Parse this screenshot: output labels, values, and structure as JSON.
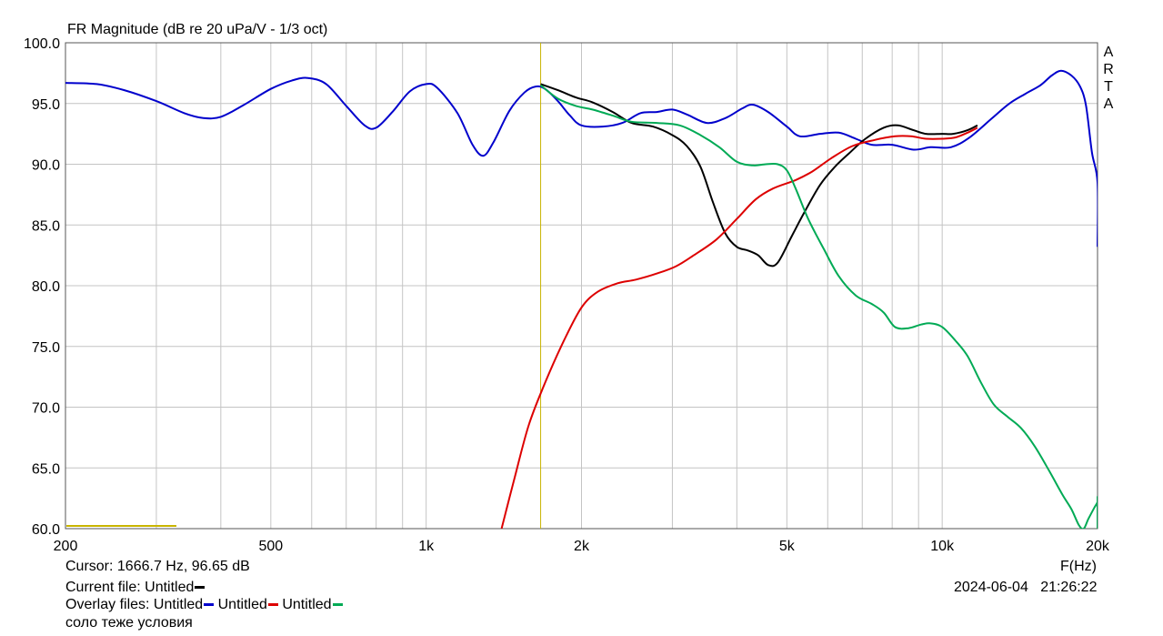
{
  "chart_data": {
    "type": "line",
    "title": "FR Magnitude (dB re 20 uPa/V - 1/3 oct)",
    "xlabel": "F(Hz)",
    "ylabel": "",
    "x_scale": "log",
    "xlim": [
      200,
      20000
    ],
    "ylim": [
      60,
      100
    ],
    "grid": true,
    "x_ticks": [
      {
        "value": 200,
        "label": "200"
      },
      {
        "value": 500,
        "label": "500"
      },
      {
        "value": 1000,
        "label": "1k"
      },
      {
        "value": 2000,
        "label": "2k"
      },
      {
        "value": 5000,
        "label": "5k"
      },
      {
        "value": 10000,
        "label": "10k"
      },
      {
        "value": 20000,
        "label": "20k"
      }
    ],
    "y_ticks": [
      {
        "value": 100,
        "label": "100.0"
      },
      {
        "value": 95,
        "label": "95.0"
      },
      {
        "value": 90,
        "label": "90.0"
      },
      {
        "value": 85,
        "label": "85.0"
      },
      {
        "value": 80,
        "label": "80.0"
      },
      {
        "value": 75,
        "label": "75.0"
      },
      {
        "value": 70,
        "label": "70.0"
      },
      {
        "value": 65,
        "label": "65.0"
      },
      {
        "value": 60,
        "label": "60.0"
      }
    ],
    "cursor": {
      "x": 1666.7,
      "color": "#c8b400"
    },
    "series": [
      {
        "color": "#0000cc",
        "points": [
          [
            200,
            96.7
          ],
          [
            230,
            96.6
          ],
          [
            260,
            96.1
          ],
          [
            300,
            95.2
          ],
          [
            340,
            94.2
          ],
          [
            370,
            93.8
          ],
          [
            400,
            93.9
          ],
          [
            440,
            94.8
          ],
          [
            500,
            96.2
          ],
          [
            550,
            96.9
          ],
          [
            590,
            97.1
          ],
          [
            640,
            96.6
          ],
          [
            700,
            94.8
          ],
          [
            760,
            93.2
          ],
          [
            800,
            93.0
          ],
          [
            860,
            94.3
          ],
          [
            930,
            96.0
          ],
          [
            1000,
            96.6
          ],
          [
            1050,
            96.3
          ],
          [
            1150,
            94.2
          ],
          [
            1230,
            91.6
          ],
          [
            1290,
            90.7
          ],
          [
            1350,
            91.8
          ],
          [
            1450,
            94.4
          ],
          [
            1550,
            95.9
          ],
          [
            1630,
            96.4
          ],
          [
            1700,
            96.2
          ],
          [
            1800,
            95.2
          ],
          [
            1900,
            94.0
          ],
          [
            2000,
            93.2
          ],
          [
            2200,
            93.1
          ],
          [
            2400,
            93.4
          ],
          [
            2600,
            94.2
          ],
          [
            2800,
            94.3
          ],
          [
            3000,
            94.5
          ],
          [
            3200,
            94.1
          ],
          [
            3500,
            93.4
          ],
          [
            3800,
            93.8
          ],
          [
            4100,
            94.6
          ],
          [
            4300,
            94.9
          ],
          [
            4600,
            94.3
          ],
          [
            5000,
            93.1
          ],
          [
            5300,
            92.3
          ],
          [
            5800,
            92.5
          ],
          [
            6300,
            92.6
          ],
          [
            6800,
            92.1
          ],
          [
            7300,
            91.6
          ],
          [
            8000,
            91.6
          ],
          [
            8800,
            91.2
          ],
          [
            9500,
            91.4
          ],
          [
            10400,
            91.4
          ],
          [
            11300,
            92.2
          ],
          [
            12500,
            93.8
          ],
          [
            13500,
            95.0
          ],
          [
            14500,
            95.8
          ],
          [
            15500,
            96.5
          ],
          [
            16300,
            97.3
          ],
          [
            17000,
            97.7
          ],
          [
            17800,
            97.3
          ],
          [
            18500,
            96.4
          ],
          [
            19000,
            94.8
          ],
          [
            19500,
            91.0
          ],
          [
            20000,
            88.5
          ],
          [
            20000,
            83.2
          ]
        ]
      },
      {
        "color": "#000000",
        "points": [
          [
            1666.7,
            96.6
          ],
          [
            1800,
            96.1
          ],
          [
            1950,
            95.5
          ],
          [
            2100,
            95.1
          ],
          [
            2300,
            94.3
          ],
          [
            2500,
            93.4
          ],
          [
            2750,
            93.1
          ],
          [
            3000,
            92.4
          ],
          [
            3200,
            91.5
          ],
          [
            3400,
            89.8
          ],
          [
            3600,
            86.8
          ],
          [
            3800,
            84.3
          ],
          [
            4000,
            83.2
          ],
          [
            4200,
            82.9
          ],
          [
            4400,
            82.5
          ],
          [
            4600,
            81.7
          ],
          [
            4800,
            81.9
          ],
          [
            5100,
            84.0
          ],
          [
            5400,
            86.0
          ],
          [
            5800,
            88.3
          ],
          [
            6200,
            89.8
          ],
          [
            6600,
            90.9
          ],
          [
            7100,
            92.1
          ],
          [
            7700,
            93.0
          ],
          [
            8200,
            93.2
          ],
          [
            8800,
            92.8
          ],
          [
            9300,
            92.5
          ],
          [
            10000,
            92.5
          ],
          [
            10500,
            92.5
          ],
          [
            11200,
            92.8
          ],
          [
            11700,
            93.2
          ]
        ]
      },
      {
        "color": "#dd0000",
        "points": [
          [
            1400,
            60.0
          ],
          [
            1480,
            64.0
          ],
          [
            1580,
            68.5
          ],
          [
            1700,
            72.0
          ],
          [
            1850,
            75.5
          ],
          [
            2000,
            78.2
          ],
          [
            2150,
            79.5
          ],
          [
            2350,
            80.2
          ],
          [
            2550,
            80.5
          ],
          [
            2800,
            81.0
          ],
          [
            3050,
            81.6
          ],
          [
            3300,
            82.5
          ],
          [
            3650,
            83.8
          ],
          [
            4000,
            85.5
          ],
          [
            4350,
            87.1
          ],
          [
            4700,
            88.0
          ],
          [
            5200,
            88.7
          ],
          [
            5600,
            89.4
          ],
          [
            6100,
            90.5
          ],
          [
            6700,
            91.5
          ],
          [
            7400,
            92.0
          ],
          [
            8100,
            92.3
          ],
          [
            8700,
            92.3
          ],
          [
            9300,
            92.1
          ],
          [
            10000,
            92.1
          ],
          [
            10600,
            92.2
          ],
          [
            11200,
            92.6
          ],
          [
            11700,
            93.0
          ]
        ]
      },
      {
        "color": "#00aa55",
        "points": [
          [
            1666.7,
            96.5
          ],
          [
            1800,
            95.4
          ],
          [
            1950,
            94.8
          ],
          [
            2100,
            94.5
          ],
          [
            2300,
            94.0
          ],
          [
            2500,
            93.5
          ],
          [
            2800,
            93.4
          ],
          [
            3100,
            93.2
          ],
          [
            3400,
            92.4
          ],
          [
            3700,
            91.4
          ],
          [
            4000,
            90.2
          ],
          [
            4300,
            89.9
          ],
          [
            4550,
            90.0
          ],
          [
            4800,
            90.0
          ],
          [
            5000,
            89.5
          ],
          [
            5200,
            88.0
          ],
          [
            5500,
            85.5
          ],
          [
            5900,
            83.0
          ],
          [
            6300,
            80.8
          ],
          [
            6800,
            79.2
          ],
          [
            7300,
            78.5
          ],
          [
            7700,
            77.8
          ],
          [
            8100,
            76.6
          ],
          [
            8600,
            76.5
          ],
          [
            9100,
            76.8
          ],
          [
            9500,
            76.9
          ],
          [
            10000,
            76.6
          ],
          [
            10600,
            75.5
          ],
          [
            11200,
            74.2
          ],
          [
            11900,
            72.0
          ],
          [
            12600,
            70.2
          ],
          [
            13400,
            69.2
          ],
          [
            14200,
            68.3
          ],
          [
            15100,
            66.8
          ],
          [
            16100,
            64.8
          ],
          [
            17100,
            62.8
          ],
          [
            17800,
            61.6
          ],
          [
            18400,
            60.3
          ],
          [
            18800,
            60.0
          ],
          [
            19200,
            60.8
          ],
          [
            19700,
            61.7
          ],
          [
            20000,
            62.2
          ],
          [
            20000,
            62.6
          ],
          [
            20000,
            61.5
          ],
          [
            20000,
            60.0
          ]
        ]
      }
    ]
  },
  "info": {
    "cursor_text": "Cursor: 1666.7 Hz, 96.65 dB",
    "current_file_label": "Current file: Untitled",
    "overlay_label": "Overlay files: Untitled",
    "overlay_2": "Untitled",
    "overlay_3": "Untitled",
    "comment": "соло теже условия",
    "date": "2024-06-04",
    "time": "21:26:22",
    "arta_letters": [
      "A",
      "R",
      "T",
      "A"
    ]
  }
}
